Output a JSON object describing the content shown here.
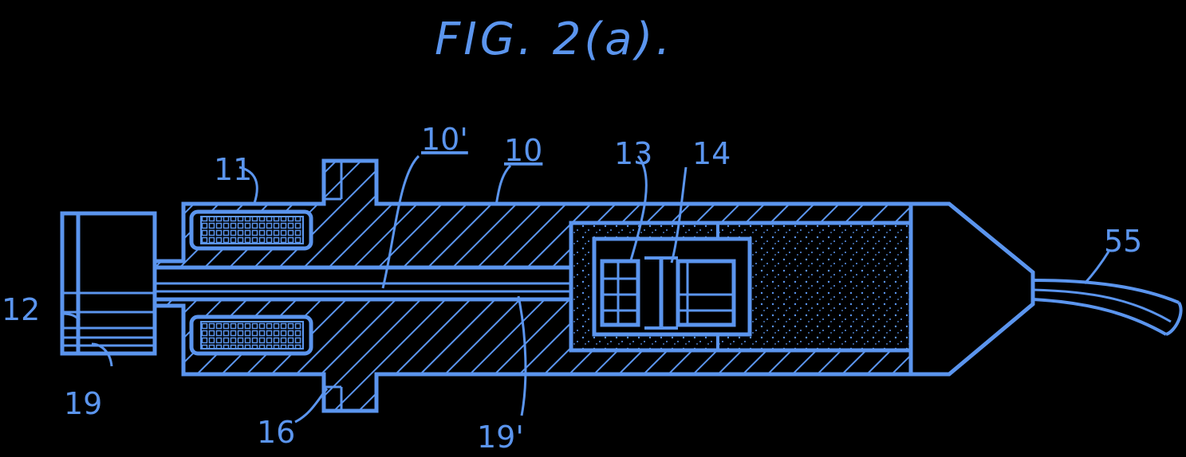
{
  "figure": {
    "title": "FIG. 2(a).",
    "line_color": "#5b95ee",
    "background_color": "#000000"
  },
  "labels": {
    "ref_10_prime": "10'",
    "ref_10": "10",
    "ref_11": "11",
    "ref_12": "12",
    "ref_13": "13",
    "ref_14": "14",
    "ref_16": "16",
    "ref_19": "19",
    "ref_19_prime": "19'",
    "ref_55": "55"
  }
}
